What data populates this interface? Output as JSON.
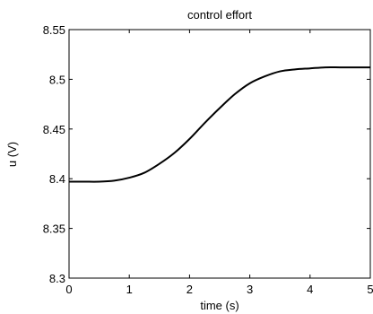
{
  "chart_data": {
    "type": "line",
    "title": "control effort",
    "xlabel": "time (s)",
    "ylabel": "u (V)",
    "xlim": [
      0,
      5
    ],
    "ylim": [
      8.3,
      8.55
    ],
    "xticks": [
      0,
      1,
      2,
      3,
      4,
      5
    ],
    "xtick_labels": [
      "0",
      "1",
      "2",
      "3",
      "4",
      "5"
    ],
    "yticks": [
      8.3,
      8.35,
      8.4,
      8.45,
      8.5,
      8.55
    ],
    "ytick_labels": [
      "8.3",
      "8.35",
      "8.4",
      "8.45",
      "8.5",
      "8.55"
    ],
    "grid": false,
    "series": [
      {
        "color": "#000000",
        "x": [
          0,
          0.25,
          0.5,
          0.75,
          1.0,
          1.25,
          1.5,
          1.75,
          2.0,
          2.25,
          2.5,
          2.75,
          3.0,
          3.25,
          3.5,
          3.75,
          4.0,
          4.25,
          4.5,
          4.75,
          5.0
        ],
        "y": [
          8.397,
          8.397,
          8.397,
          8.398,
          8.401,
          8.406,
          8.415,
          8.426,
          8.44,
          8.456,
          8.471,
          8.485,
          8.496,
          8.503,
          8.508,
          8.51,
          8.511,
          8.512,
          8.512,
          8.512,
          8.512
        ]
      }
    ]
  }
}
